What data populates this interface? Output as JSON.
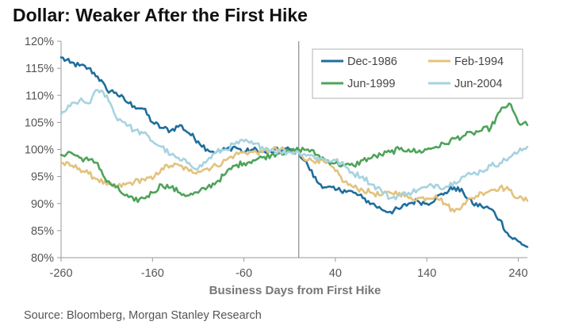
{
  "title": "Dollar: Weaker After the First Hike",
  "source": "Source: Bloomberg, Morgan Stanley Research",
  "chart_data": {
    "type": "line",
    "title": "Dollar: Weaker After the First Hike",
    "xlabel": "Business Days from First Hike",
    "ylabel": "",
    "xlim": [
      -260,
      250
    ],
    "ylim": [
      80,
      120
    ],
    "x_ticks": [
      -260,
      -160,
      -60,
      40,
      140,
      240
    ],
    "x_tick_labels": [
      "-260",
      "-160",
      "-60",
      "40",
      "140",
      "240"
    ],
    "y_ticks": [
      80,
      85,
      90,
      95,
      100,
      105,
      110,
      115,
      120
    ],
    "y_tick_labels": [
      "80%",
      "85%",
      "90%",
      "95%",
      "100%",
      "105%",
      "110%",
      "115%",
      "120%"
    ],
    "vertical_marker_x": 0,
    "grid": false,
    "legend_position": "top-right",
    "x": [
      -260,
      -250,
      -240,
      -230,
      -220,
      -210,
      -200,
      -190,
      -180,
      -170,
      -160,
      -150,
      -140,
      -130,
      -120,
      -110,
      -100,
      -90,
      -80,
      -70,
      -60,
      -50,
      -40,
      -30,
      -20,
      -10,
      0,
      10,
      20,
      30,
      40,
      50,
      60,
      70,
      80,
      90,
      100,
      110,
      120,
      130,
      140,
      150,
      160,
      170,
      180,
      190,
      200,
      210,
      220,
      230,
      240,
      250
    ],
    "series": [
      {
        "name": "Dec-1986",
        "color": "#1f6e9c",
        "values": [
          117,
          116,
          115.5,
          115,
          113.5,
          111,
          110.5,
          109,
          108,
          107.5,
          105,
          104,
          103.5,
          104.5,
          103,
          101.5,
          100,
          99.5,
          100,
          100.5,
          99.5,
          100,
          99.5,
          99.5,
          100,
          100,
          99.5,
          97,
          94,
          93,
          92.5,
          92.5,
          92,
          91,
          90,
          89,
          88.5,
          89,
          90,
          90.5,
          90,
          91,
          92,
          93,
          92,
          90,
          89.5,
          89,
          87,
          84,
          83,
          82
        ]
      },
      {
        "name": "Feb-1994",
        "color": "#e3c27e",
        "values": [
          97.5,
          97,
          96.5,
          95.5,
          94.5,
          93.5,
          93,
          93.5,
          94,
          94.5,
          94.5,
          96.5,
          97,
          97,
          96,
          96,
          96.5,
          97,
          98,
          99,
          99.5,
          99.5,
          99.5,
          100,
          100,
          99.5,
          99.5,
          98,
          98,
          97.5,
          96,
          94,
          93,
          92.5,
          92,
          91.5,
          92,
          92,
          91,
          91,
          91,
          91.5,
          90,
          88.5,
          90,
          91,
          92,
          92.5,
          93,
          92.5,
          91,
          90.5
        ]
      },
      {
        "name": "Jun-1999",
        "color": "#4ea35a",
        "values": [
          99,
          99.5,
          98.5,
          98,
          97.5,
          94,
          93,
          91.5,
          90.5,
          91,
          92,
          93.5,
          93,
          92,
          91.5,
          92,
          93,
          94,
          95.5,
          97,
          97.5,
          98,
          98.5,
          99,
          99.5,
          99.5,
          100,
          100,
          99,
          98,
          97.5,
          97,
          97,
          98,
          98.5,
          99,
          99.5,
          100,
          100,
          99.5,
          100,
          100.5,
          101,
          102,
          102.5,
          103,
          103.5,
          104,
          107,
          108.5,
          105,
          104.5
        ]
      },
      {
        "name": "Jun-2004",
        "color": "#a6d3e0",
        "values": [
          106.5,
          108,
          109,
          108.5,
          111,
          110,
          106,
          105,
          103.5,
          103,
          101.5,
          100.5,
          99,
          98,
          97.5,
          96.5,
          98,
          99.5,
          100,
          101,
          101.5,
          101,
          100.5,
          100,
          99.5,
          99.5,
          99.5,
          99,
          98.5,
          98,
          98,
          97,
          95.5,
          95,
          93.5,
          92.5,
          91,
          91.5,
          92,
          92.5,
          93,
          93.5,
          93,
          94,
          95,
          95.5,
          96,
          97,
          97.5,
          98.5,
          99.5,
          100.5
        ]
      }
    ]
  }
}
